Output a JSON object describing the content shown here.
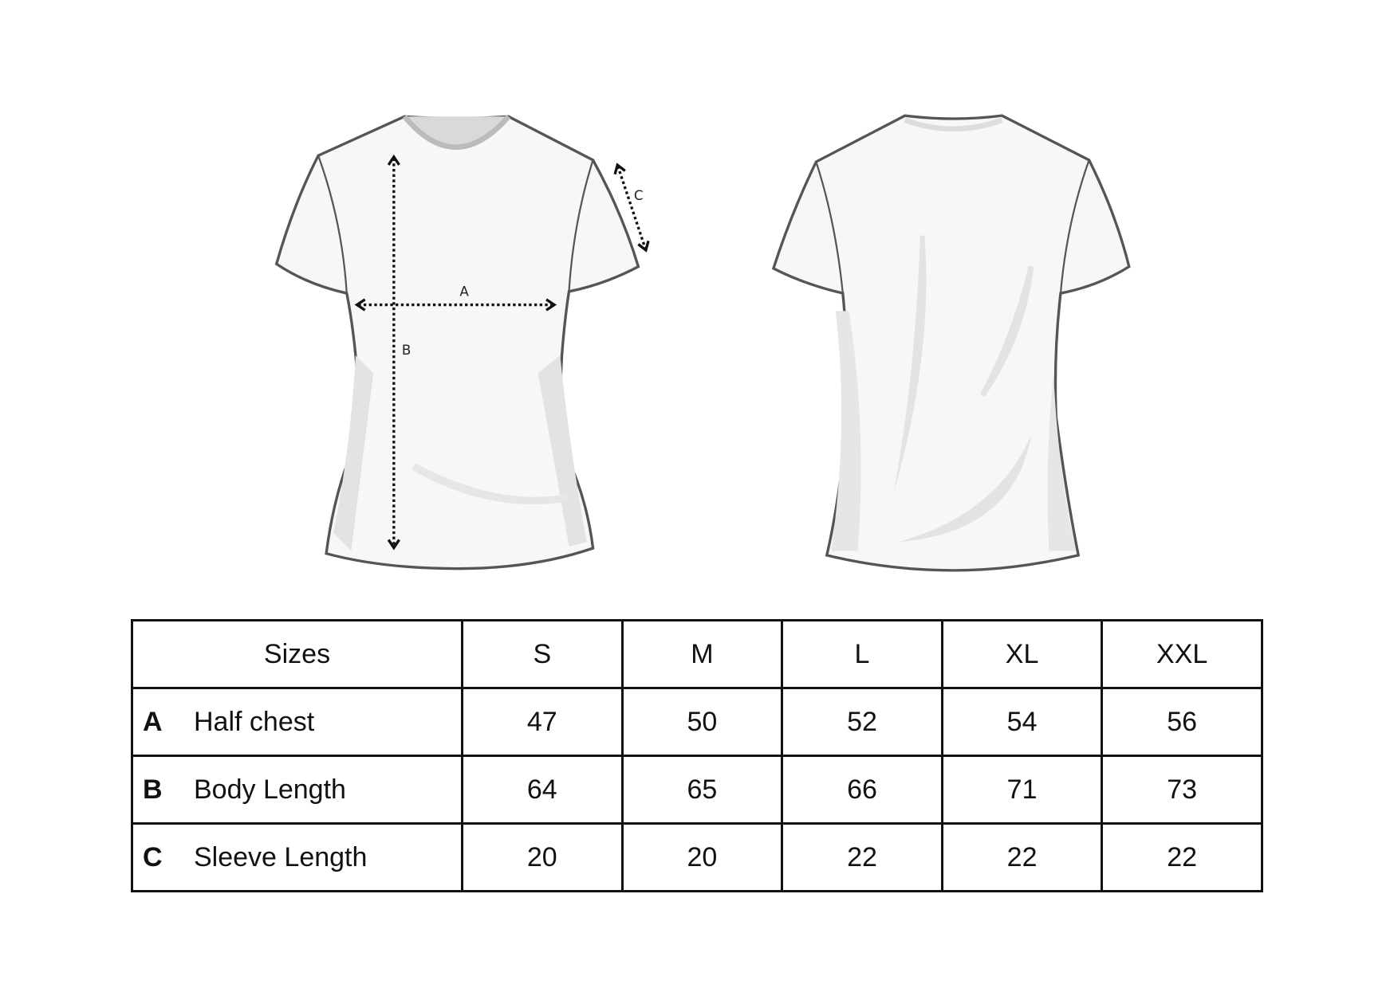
{
  "diagram": {
    "front_labels": [
      "A",
      "B",
      "C"
    ]
  },
  "table": {
    "header_label": "Sizes",
    "sizes": [
      "S",
      "M",
      "L",
      "XL",
      "XXL"
    ],
    "rows": [
      {
        "letter": "A",
        "name": "Half chest",
        "values": [
          "47",
          "50",
          "52",
          "54",
          "56"
        ]
      },
      {
        "letter": "B",
        "name": "Body Length",
        "values": [
          "64",
          "65",
          "66",
          "71",
          "73"
        ]
      },
      {
        "letter": "C",
        "name": "Sleeve Length",
        "values": [
          "20",
          "20",
          "22",
          "22",
          "22"
        ]
      }
    ]
  }
}
